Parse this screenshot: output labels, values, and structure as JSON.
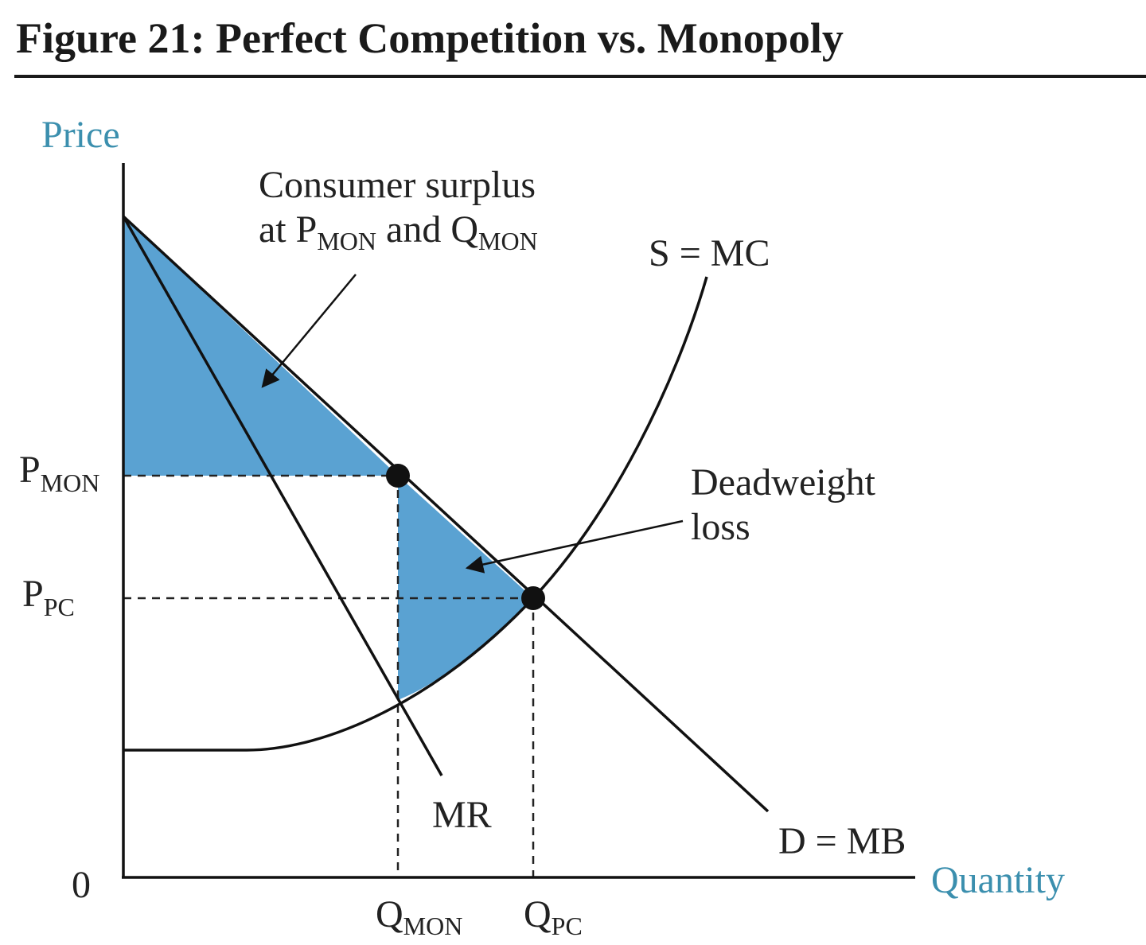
{
  "header": {
    "title": "Figure 21: Perfect Competition vs. Monopoly"
  },
  "axes": {
    "y_label": "Price",
    "x_label": "Quantity",
    "origin": "0"
  },
  "ticks": {
    "p_mon": {
      "main": "P",
      "sub": "MON"
    },
    "p_pc": {
      "main": "P",
      "sub": "PC"
    },
    "q_mon": {
      "main": "Q",
      "sub": "MON"
    },
    "q_pc": {
      "main": "Q",
      "sub": "PC"
    }
  },
  "curves": {
    "supply": "S = MC",
    "demand": "D = MB",
    "mr": "MR"
  },
  "annotations": {
    "consumer_surplus": {
      "line1": "Consumer surplus",
      "line2": [
        "at ",
        "P",
        "MON",
        " and ",
        "Q",
        "MON"
      ]
    },
    "deadweight_loss": {
      "line1": "Deadweight",
      "line2": "loss"
    }
  }
}
